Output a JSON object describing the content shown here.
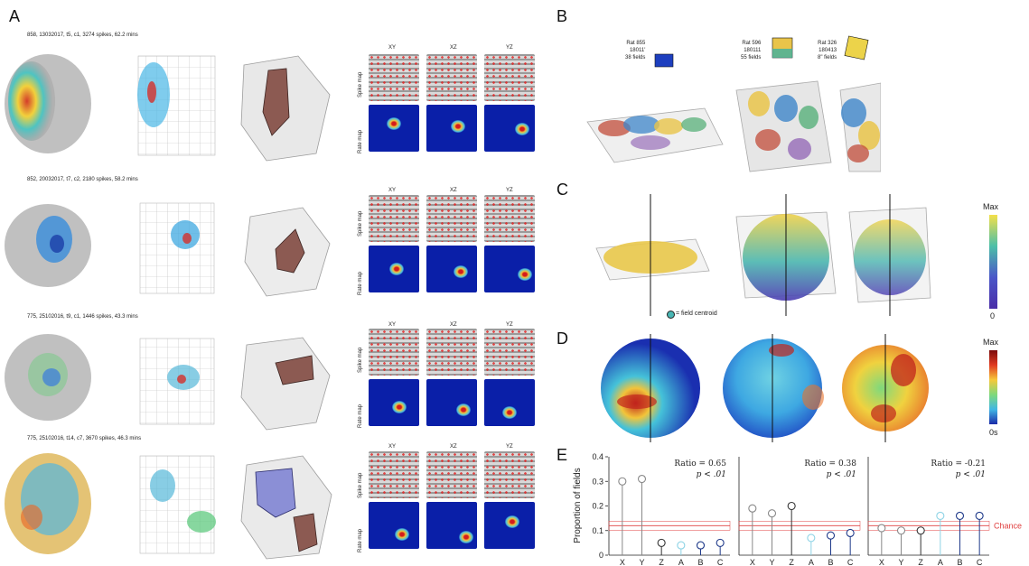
{
  "panels": {
    "a": "A",
    "b": "B",
    "c": "C",
    "d": "D",
    "e": "E"
  },
  "panelA": {
    "rows": [
      {
        "title": "858, 13032017, t5, c1, 3274 spikes, 62.2 mins"
      },
      {
        "title": "852, 20032017, t7, c2, 2180 spikes, 58.2 mins"
      },
      {
        "title": "775, 25102016, t9, c1, 1446 spikes, 43.3 mins"
      },
      {
        "title": "775, 25102016, t14, c7, 3670 spikes, 46.3 mins"
      }
    ],
    "planes": [
      "XY",
      "XZ",
      "YZ"
    ],
    "spike_map_label": "Spike map",
    "rate_map_label": "Rate map"
  },
  "panelB": {
    "rats": [
      {
        "line1": "Rat 855",
        "line2": "18011'",
        "line3": "38 fields"
      },
      {
        "line1": "Rat 596",
        "line2": "180111",
        "line3": "55 fields"
      },
      {
        "line1": "Rat 326",
        "line2": "180413",
        "line3": "8\" fields"
      }
    ]
  },
  "panelC": {
    "legend": "= field centroid",
    "colorbar_max": "Max",
    "colorbar_min": "0"
  },
  "panelD": {
    "colorbar_max": "Max",
    "colorbar_min": "0s"
  },
  "chart_data": {
    "type": "stem",
    "ylabel": "Proportion of fields",
    "ylim": [
      0,
      0.4
    ],
    "yticks": [
      "0",
      "0.1",
      "0.2",
      "0.3",
      "0.4"
    ],
    "categories": [
      "X",
      "Y",
      "Z",
      "A",
      "B",
      "C"
    ],
    "chance_label": "Chance",
    "chance_value": 0.12,
    "subplots": [
      {
        "ratio_text": "Ratio = 0.65",
        "p_text": "p < .01",
        "values": [
          0.3,
          0.31,
          0.05,
          0.04,
          0.04,
          0.05
        ]
      },
      {
        "ratio_text": "Ratio = 0.38",
        "p_text": "p < .01",
        "values": [
          0.19,
          0.17,
          0.2,
          0.07,
          0.08,
          0.09
        ]
      },
      {
        "ratio_text": "Ratio = -0.21",
        "p_text": "p < .01",
        "values": [
          0.11,
          0.1,
          0.1,
          0.16,
          0.16,
          0.16
        ]
      }
    ]
  },
  "colors": {
    "chance_line": "#e04040",
    "stem_grey": "#888888",
    "stem_dark": "#333333",
    "stem_light_blue": "#8fd4e6",
    "stem_blue": "#1f3a8a"
  }
}
